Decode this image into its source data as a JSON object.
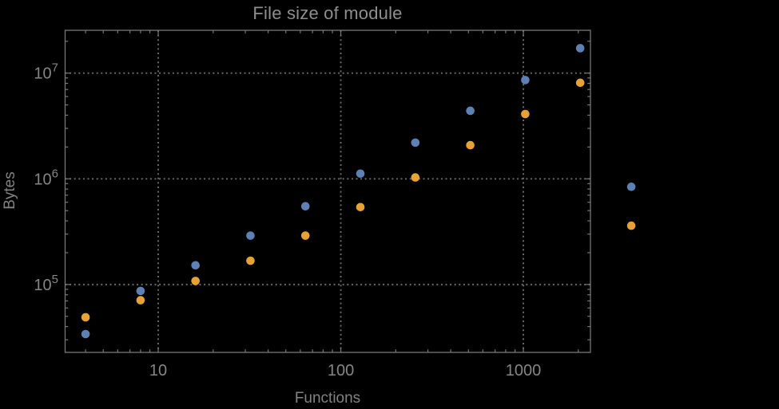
{
  "window": {
    "background": "#000000"
  },
  "chart_data": {
    "type": "scatter",
    "title": "File size of module",
    "xlabel": "Functions",
    "ylabel": "Bytes",
    "xscale": "log",
    "yscale": "log",
    "xlim": [
      3.09,
      2330
    ],
    "ylim": [
      22800,
      25400000
    ],
    "x_major_ticks": [
      10,
      100,
      1000
    ],
    "x_major_tick_labels": [
      "10",
      "100",
      "1000"
    ],
    "y_major_ticks": [
      100000,
      1000000,
      10000000
    ],
    "y_major_tick_mantissa": "10",
    "y_major_tick_exponents": [
      "5",
      "6",
      "7"
    ],
    "grid": "dotted lines at major ticks, all four frame sides ticked",
    "legend": "none",
    "frame_color": "#75777A",
    "grid_color": "#6C6C6C",
    "text_color": "#858585",
    "marker_radius": 5.3,
    "series": [
      {
        "name": "blue",
        "color": "#5E81B5",
        "points": [
          [
            4,
            34000
          ],
          [
            8,
            87000
          ],
          [
            16,
            152000
          ],
          [
            32,
            290000
          ],
          [
            64,
            550000
          ],
          [
            128,
            1120000
          ],
          [
            256,
            2200000
          ],
          [
            512,
            4400000
          ],
          [
            1024,
            8600000
          ],
          [
            2048,
            17200000
          ],
          [
            3900,
            840000
          ]
        ]
      },
      {
        "name": "orange",
        "color": "#E6A235",
        "points": [
          [
            4,
            49000
          ],
          [
            8,
            71000
          ],
          [
            16,
            108000
          ],
          [
            32,
            168000
          ],
          [
            64,
            290000
          ],
          [
            128,
            540000
          ],
          [
            256,
            1030000
          ],
          [
            512,
            2080000
          ],
          [
            1024,
            4100000
          ],
          [
            2048,
            8100000
          ],
          [
            3900,
            360000
          ]
        ]
      }
    ]
  }
}
